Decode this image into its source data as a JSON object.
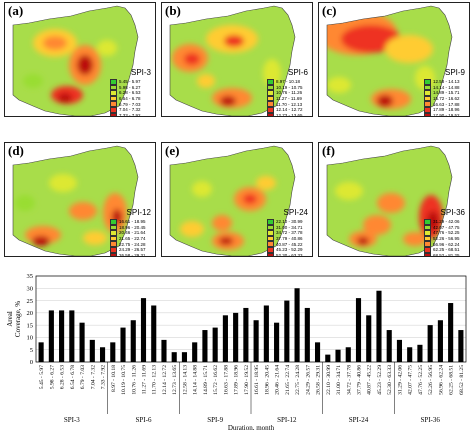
{
  "panels": [
    {
      "letter": "(a)",
      "index": "SPI-3",
      "legend": [
        "5.45 - 5.97",
        "5.98 - 6.27",
        "6.28 - 6.53",
        "6.54 - 6.78",
        "6.79 - 7.03",
        "7.04 - 7.32",
        "7.33 - 7.92"
      ]
    },
    {
      "letter": "(b)",
      "index": "SPI-6",
      "legend": [
        "8.97 - 10.18",
        "10.19 - 10.75",
        "10.76 - 11.26",
        "11.27 - 11.69",
        "11.70 - 12.13",
        "12.14 - 12.72",
        "12.73 - 13.65"
      ]
    },
    {
      "letter": "(c)",
      "index": "SPI-9",
      "legend": [
        "12.58 - 14.13",
        "14.14 - 14.88",
        "14.89 - 15.71",
        "15.72 - 16.62",
        "16.63 - 17.88",
        "17.89 - 18.96",
        "17.90 - 19.52"
      ]
    },
    {
      "letter": "(d)",
      "index": "SPI-12",
      "legend": [
        "16.61 - 18.95",
        "18.96 - 20.45",
        "20.46 - 21.64",
        "21.65 - 22.74",
        "22.75 - 24.28",
        "24.29 - 26.57",
        "26.58 - 29.31"
      ]
    },
    {
      "letter": "(e)",
      "index": "SPI-24",
      "legend": [
        "22.10 - 30.99",
        "31.00 - 34.71",
        "34.72 - 37.78",
        "37.79 - 40.86",
        "40.87 - 45.22",
        "45.23 - 52.29",
        "52.30 - 63.33"
      ]
    },
    {
      "letter": "(f)",
      "index": "SPI-36",
      "legend": [
        "31.29 - 42.06",
        "42.07 - 47.75",
        "47.76 - 52.25",
        "52.26 - 56.95",
        "56.96 - 62.24",
        "62.25 - 68.51",
        "68.52 - 81.25"
      ]
    }
  ],
  "colors": {
    "legend_scale": [
      "#33cc33",
      "#99dd33",
      "#dde833",
      "#ffcc33",
      "#ff8833",
      "#ee3322",
      "#bb1111"
    ],
    "map_base": "#a8dd4a",
    "bars": "#000000"
  },
  "chart_data": {
    "type": "bar",
    "ylabel": "Areal\nCoverage, %",
    "xlabel": "Duration, month",
    "ylim": [
      0,
      35
    ],
    "yticks": [
      0,
      5,
      10,
      15,
      20,
      25,
      30,
      35
    ],
    "grid": true,
    "groups": [
      "SPI-3",
      "SPI-6",
      "SPI-9",
      "SPI-12",
      "SPI-24",
      "SPI-36"
    ],
    "categories": [
      "5.45 - 5.97",
      "5.98 - 6.27",
      "6.28 - 6.53",
      "6.54 - 6.78",
      "6.79 - 7.03",
      "7.04 - 7.32",
      "7.33 - 7.92",
      "8.97 - 10.18",
      "10.19 - 10.75",
      "10.76 - 11.26",
      "11.27 - 11.69",
      "11.70 - 12.13",
      "12.14 - 12.72",
      "12.73 - 13.65",
      "12.58 - 14.13",
      "14.14 - 14.88",
      "14.89 - 15.71",
      "15.72 - 16.62",
      "16.63 - 17.88",
      "17.89 - 18.96",
      "17.90 - 19.52",
      "16.61 - 18.95",
      "18.96 - 20.45",
      "20.46 - 21.64",
      "21.65 - 22.74",
      "22.75 - 24.28",
      "24.29 - 26.57",
      "26.58 - 29.31",
      "22.10 - 30.99",
      "31.00 - 34.71",
      "34.72 - 37.78",
      "37.79 - 40.86",
      "40.87 - 45.22",
      "45.23 - 52.29",
      "52.30 - 63.33",
      "31.29 - 42.06",
      "42.07 - 47.75",
      "47.76 - 52.25",
      "52.26 - 56.95",
      "56.96 - 62.24",
      "62.25 - 68.51",
      "68.52 - 81.25"
    ],
    "values": [
      8,
      21,
      21,
      21,
      16,
      9,
      6,
      8,
      14,
      17,
      26,
      23,
      9,
      4,
      4,
      8,
      13,
      14,
      19,
      20,
      22,
      17,
      23,
      16,
      25,
      30,
      22,
      8,
      3,
      5,
      6,
      26,
      19,
      29,
      13,
      9,
      6,
      7,
      15,
      17,
      24,
      13
    ]
  }
}
